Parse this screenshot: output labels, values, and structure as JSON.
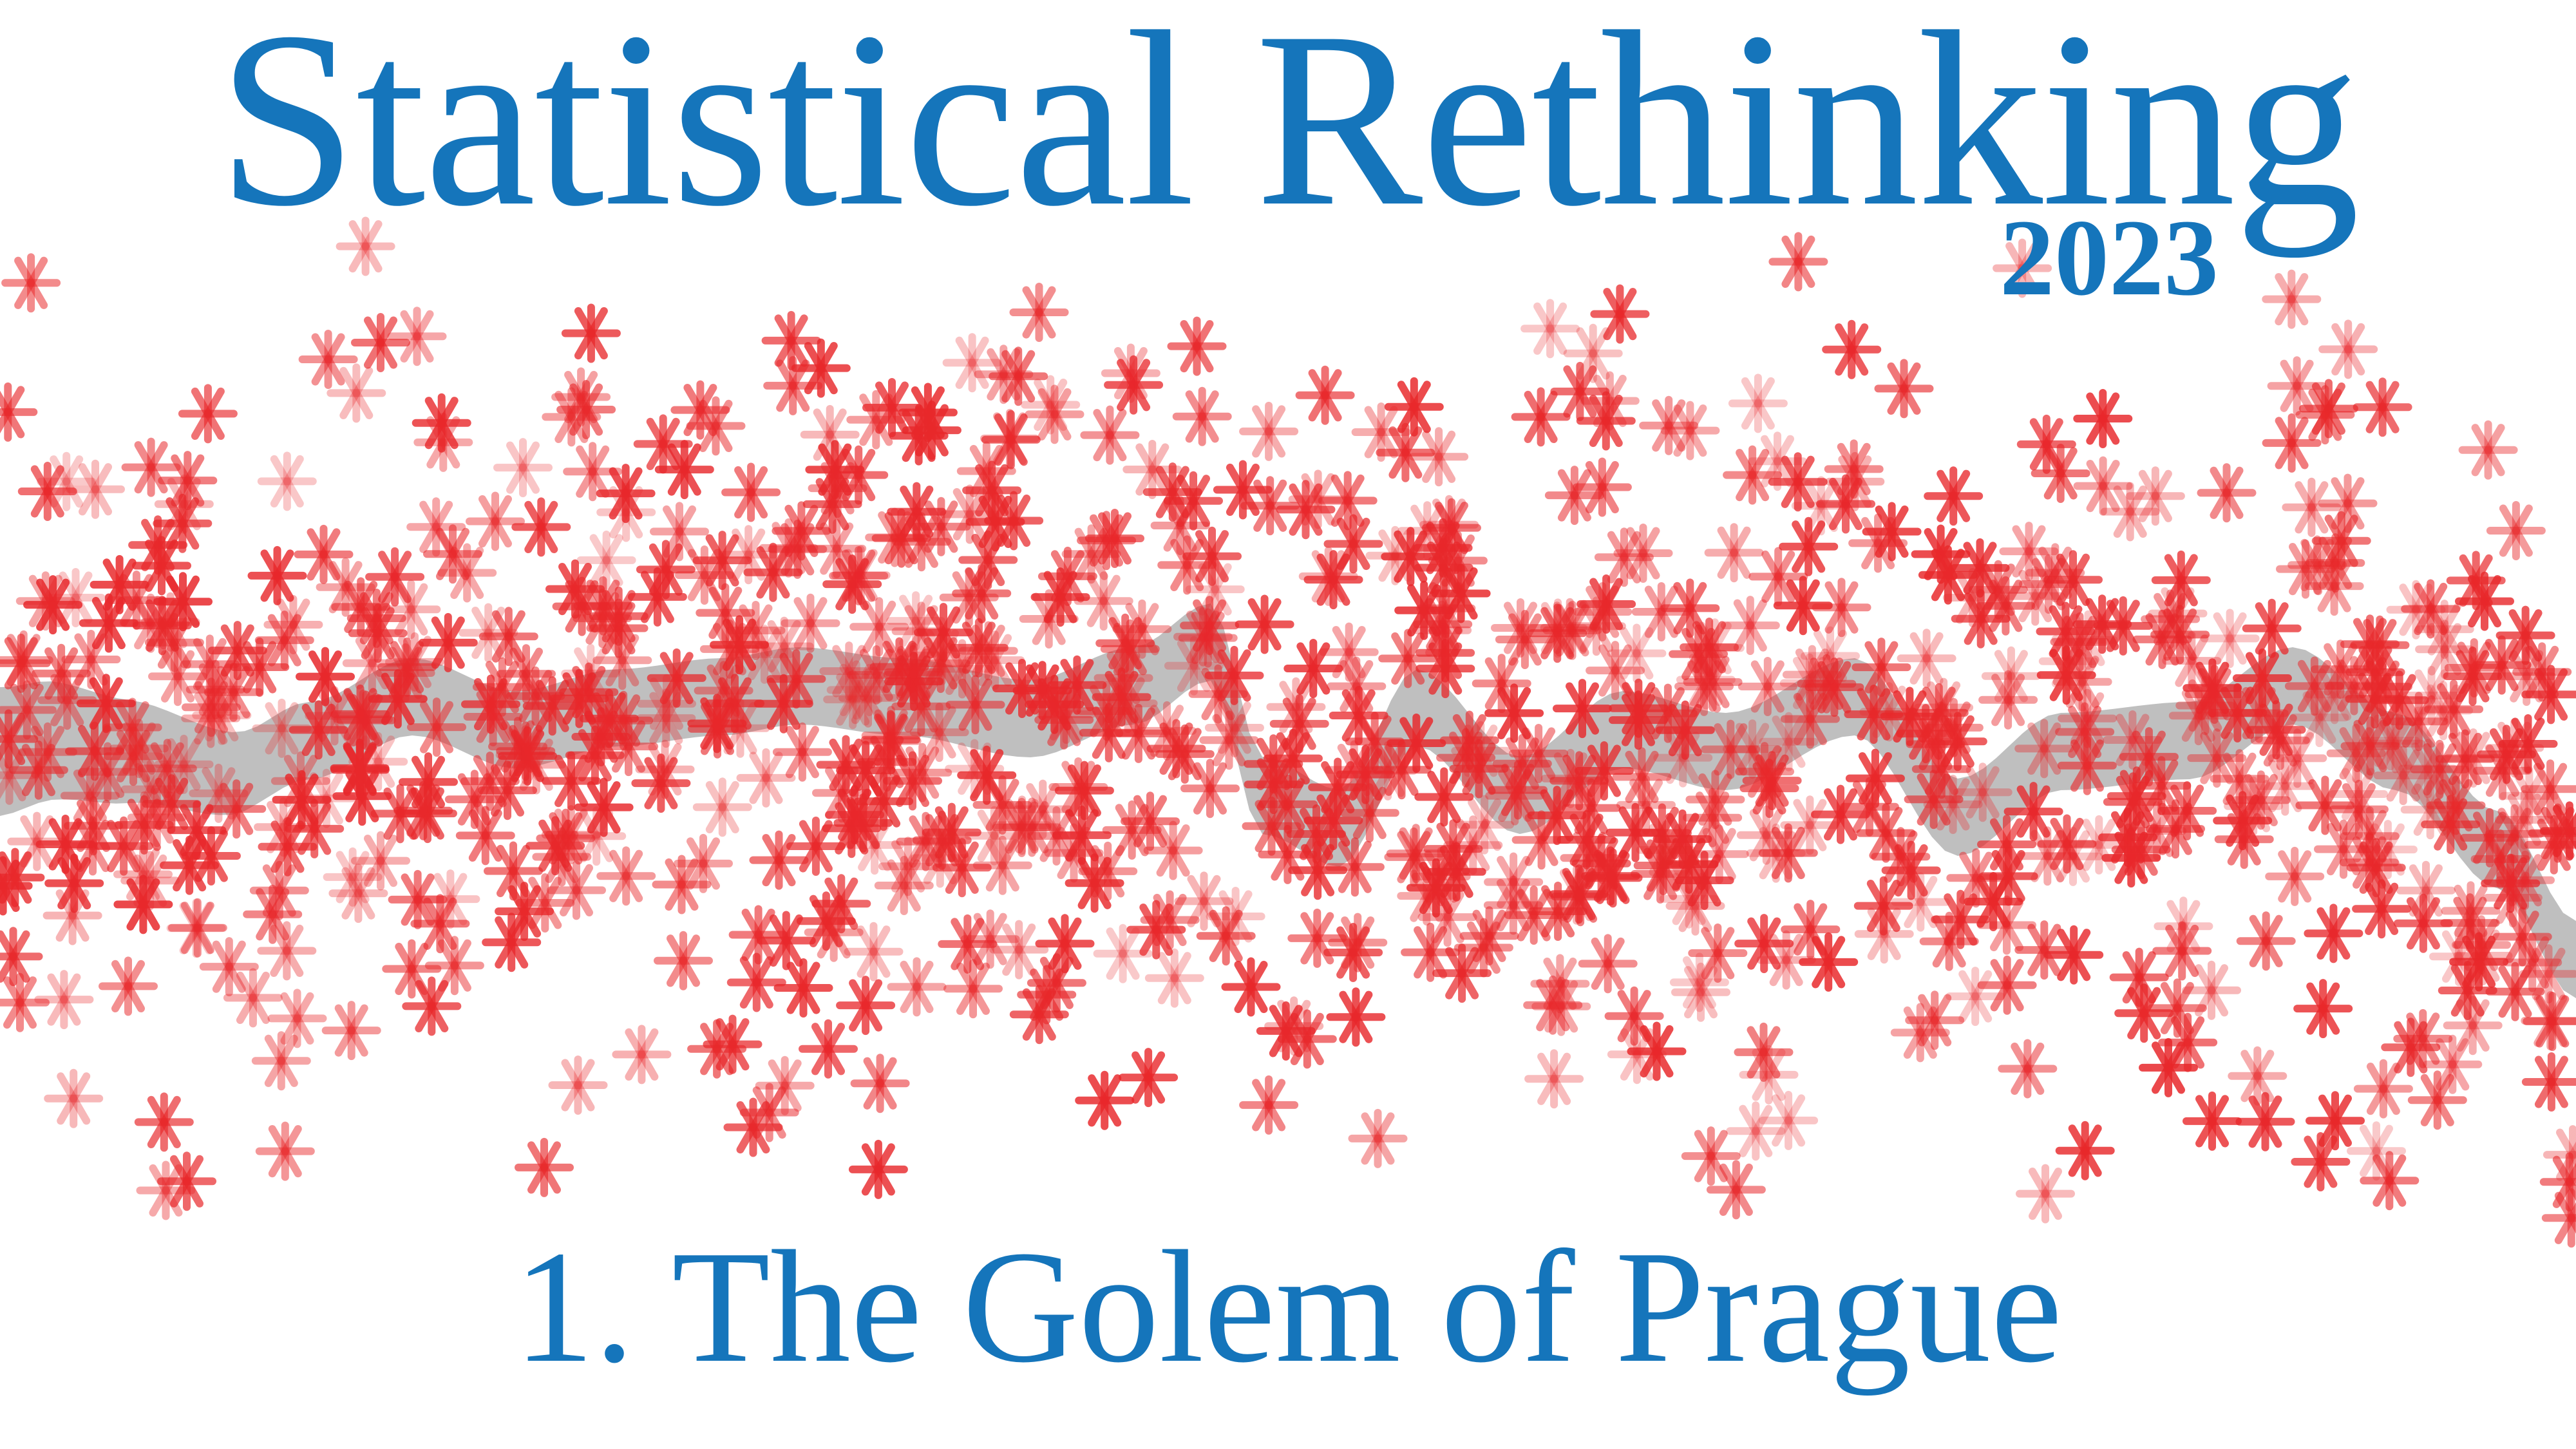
{
  "slide": {
    "title": "Statistical Rethinking",
    "year": "2023",
    "subtitle": "1. The Golem of Prague"
  },
  "colors": {
    "text": "#1575bb",
    "points": "#e8282b",
    "band": "#8a8a8a",
    "background": "#ffffff"
  },
  "chart_data": {
    "type": "scatter",
    "marker": "asterisk",
    "title": "",
    "xlabel": "",
    "ylabel": "",
    "point_count_approx": 900,
    "mean_curve": {
      "x": [
        0.0,
        0.02,
        0.05,
        0.09,
        0.12,
        0.16,
        0.2,
        0.24,
        0.28,
        0.31,
        0.35,
        0.4,
        0.44,
        0.47,
        0.49,
        0.52,
        0.55,
        0.59,
        0.63,
        0.67,
        0.72,
        0.76,
        0.8,
        0.85,
        0.89,
        0.93,
        0.97,
        1.0
      ],
      "y": [
        0.49,
        0.5,
        0.49,
        0.47,
        0.5,
        0.54,
        0.51,
        0.53,
        0.54,
        0.55,
        0.54,
        0.52,
        0.55,
        0.59,
        0.45,
        0.42,
        0.53,
        0.45,
        0.51,
        0.49,
        0.54,
        0.43,
        0.49,
        0.5,
        0.55,
        0.49,
        0.4,
        0.3
      ]
    }
  }
}
